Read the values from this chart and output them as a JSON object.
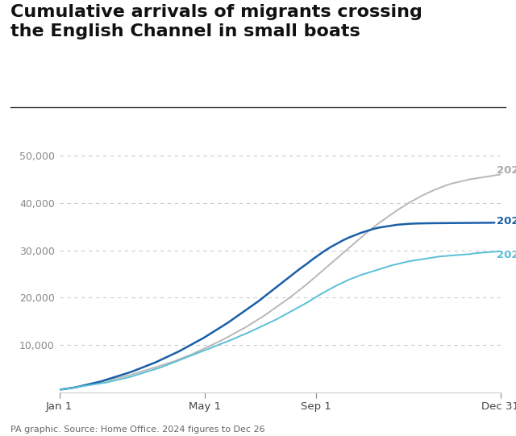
{
  "title": "Cumulative arrivals of migrants crossing\nthe English Channel in small boats",
  "caption": "PA graphic. Source: Home Office. 2024 figures to Dec 26",
  "background_color": "#ffffff",
  "title_fontsize": 16,
  "ylabel_fontsize": 9,
  "xlabel_fontsize": 9.5,
  "caption_fontsize": 8,
  "ylim": [
    0,
    52000
  ],
  "yticks": [
    10000,
    20000,
    30000,
    40000,
    50000
  ],
  "xtick_labels": [
    "Jan 1",
    "May 1",
    "Sep 1",
    "Dec 31"
  ],
  "color_2022": "#b8b8b8",
  "color_2023": "#5bbfd6",
  "color_2024": "#1a5fa8",
  "label_color_2022": "#aaaaaa",
  "label_color_2023": "#5bbfd6",
  "label_color_2024": "#1a5fa8",
  "data_2022": [
    [
      1,
      600
    ],
    [
      5,
      700
    ],
    [
      10,
      900
    ],
    [
      15,
      1100
    ],
    [
      20,
      1400
    ],
    [
      25,
      1600
    ],
    [
      30,
      1900
    ],
    [
      35,
      2200
    ],
    [
      40,
      2500
    ],
    [
      45,
      2800
    ],
    [
      50,
      3100
    ],
    [
      55,
      3400
    ],
    [
      60,
      3700
    ],
    [
      65,
      4100
    ],
    [
      70,
      4500
    ],
    [
      75,
      4900
    ],
    [
      80,
      5300
    ],
    [
      85,
      5700
    ],
    [
      90,
      6100
    ],
    [
      95,
      6500
    ],
    [
      100,
      7000
    ],
    [
      105,
      7500
    ],
    [
      110,
      8000
    ],
    [
      115,
      8600
    ],
    [
      120,
      9200
    ],
    [
      125,
      9800
    ],
    [
      130,
      10400
    ],
    [
      135,
      11000
    ],
    [
      140,
      11700
    ],
    [
      145,
      12400
    ],
    [
      150,
      13100
    ],
    [
      155,
      13800
    ],
    [
      160,
      14600
    ],
    [
      165,
      15400
    ],
    [
      170,
      16200
    ],
    [
      175,
      17100
    ],
    [
      180,
      18000
    ],
    [
      185,
      18900
    ],
    [
      190,
      19800
    ],
    [
      195,
      20800
    ],
    [
      200,
      21800
    ],
    [
      205,
      22800
    ],
    [
      210,
      23900
    ],
    [
      215,
      25000
    ],
    [
      220,
      26100
    ],
    [
      225,
      27200
    ],
    [
      230,
      28300
    ],
    [
      235,
      29400
    ],
    [
      240,
      30500
    ],
    [
      245,
      31600
    ],
    [
      250,
      32700
    ],
    [
      255,
      33800
    ],
    [
      260,
      34800
    ],
    [
      265,
      35800
    ],
    [
      270,
      36700
    ],
    [
      275,
      37600
    ],
    [
      280,
      38500
    ],
    [
      285,
      39300
    ],
    [
      290,
      40100
    ],
    [
      295,
      40800
    ],
    [
      300,
      41500
    ],
    [
      305,
      42100
    ],
    [
      310,
      42700
    ],
    [
      315,
      43200
    ],
    [
      320,
      43700
    ],
    [
      325,
      44100
    ],
    [
      330,
      44400
    ],
    [
      335,
      44700
    ],
    [
      340,
      45000
    ],
    [
      345,
      45200
    ],
    [
      350,
      45400
    ],
    [
      355,
      45600
    ],
    [
      360,
      45800
    ],
    [
      365,
      46000
    ]
  ],
  "data_2023": [
    [
      1,
      600
    ],
    [
      5,
      700
    ],
    [
      10,
      900
    ],
    [
      15,
      1100
    ],
    [
      20,
      1300
    ],
    [
      25,
      1500
    ],
    [
      30,
      1700
    ],
    [
      35,
      1900
    ],
    [
      40,
      2100
    ],
    [
      45,
      2400
    ],
    [
      50,
      2700
    ],
    [
      55,
      3000
    ],
    [
      60,
      3300
    ],
    [
      65,
      3700
    ],
    [
      70,
      4100
    ],
    [
      75,
      4500
    ],
    [
      80,
      4900
    ],
    [
      85,
      5300
    ],
    [
      90,
      5800
    ],
    [
      95,
      6300
    ],
    [
      100,
      6800
    ],
    [
      105,
      7300
    ],
    [
      110,
      7800
    ],
    [
      115,
      8300
    ],
    [
      120,
      8800
    ],
    [
      125,
      9300
    ],
    [
      130,
      9800
    ],
    [
      135,
      10300
    ],
    [
      140,
      10800
    ],
    [
      145,
      11300
    ],
    [
      150,
      11900
    ],
    [
      155,
      12400
    ],
    [
      160,
      13000
    ],
    [
      165,
      13600
    ],
    [
      170,
      14200
    ],
    [
      175,
      14800
    ],
    [
      180,
      15400
    ],
    [
      185,
      16100
    ],
    [
      190,
      16800
    ],
    [
      195,
      17500
    ],
    [
      200,
      18200
    ],
    [
      205,
      18900
    ],
    [
      210,
      19700
    ],
    [
      215,
      20500
    ],
    [
      220,
      21200
    ],
    [
      225,
      21900
    ],
    [
      230,
      22600
    ],
    [
      235,
      23200
    ],
    [
      240,
      23800
    ],
    [
      245,
      24300
    ],
    [
      250,
      24800
    ],
    [
      255,
      25200
    ],
    [
      260,
      25600
    ],
    [
      265,
      26000
    ],
    [
      270,
      26400
    ],
    [
      275,
      26800
    ],
    [
      280,
      27100
    ],
    [
      285,
      27400
    ],
    [
      290,
      27700
    ],
    [
      295,
      27900
    ],
    [
      300,
      28100
    ],
    [
      305,
      28300
    ],
    [
      310,
      28500
    ],
    [
      315,
      28700
    ],
    [
      320,
      28800
    ],
    [
      325,
      28900
    ],
    [
      330,
      29000
    ],
    [
      335,
      29100
    ],
    [
      340,
      29200
    ],
    [
      345,
      29400
    ],
    [
      350,
      29500
    ],
    [
      355,
      29600
    ],
    [
      360,
      29700
    ],
    [
      365,
      29800
    ]
  ],
  "data_2024": [
    [
      1,
      600
    ],
    [
      5,
      700
    ],
    [
      10,
      900
    ],
    [
      15,
      1100
    ],
    [
      20,
      1400
    ],
    [
      25,
      1700
    ],
    [
      30,
      2000
    ],
    [
      35,
      2300
    ],
    [
      40,
      2700
    ],
    [
      45,
      3100
    ],
    [
      50,
      3500
    ],
    [
      55,
      3900
    ],
    [
      60,
      4300
    ],
    [
      65,
      4800
    ],
    [
      70,
      5300
    ],
    [
      75,
      5800
    ],
    [
      80,
      6300
    ],
    [
      85,
      6900
    ],
    [
      90,
      7500
    ],
    [
      95,
      8100
    ],
    [
      100,
      8700
    ],
    [
      105,
      9400
    ],
    [
      110,
      10100
    ],
    [
      115,
      10800
    ],
    [
      120,
      11500
    ],
    [
      125,
      12300
    ],
    [
      130,
      13100
    ],
    [
      135,
      13900
    ],
    [
      140,
      14700
    ],
    [
      145,
      15600
    ],
    [
      150,
      16500
    ],
    [
      155,
      17400
    ],
    [
      160,
      18300
    ],
    [
      165,
      19200
    ],
    [
      170,
      20200
    ],
    [
      175,
      21200
    ],
    [
      180,
      22200
    ],
    [
      185,
      23200
    ],
    [
      190,
      24200
    ],
    [
      195,
      25200
    ],
    [
      200,
      26200
    ],
    [
      205,
      27100
    ],
    [
      210,
      28100
    ],
    [
      215,
      29000
    ],
    [
      220,
      29900
    ],
    [
      225,
      30700
    ],
    [
      230,
      31400
    ],
    [
      235,
      32100
    ],
    [
      240,
      32700
    ],
    [
      245,
      33200
    ],
    [
      250,
      33700
    ],
    [
      255,
      34100
    ],
    [
      260,
      34500
    ],
    [
      265,
      34800
    ],
    [
      270,
      35000
    ],
    [
      275,
      35200
    ],
    [
      280,
      35400
    ],
    [
      285,
      35500
    ],
    [
      290,
      35600
    ],
    [
      295,
      35650
    ],
    [
      300,
      35680
    ],
    [
      305,
      35700
    ],
    [
      310,
      35720
    ],
    [
      315,
      35730
    ],
    [
      320,
      35740
    ],
    [
      325,
      35750
    ],
    [
      330,
      35760
    ],
    [
      335,
      35770
    ],
    [
      340,
      35780
    ],
    [
      345,
      35790
    ],
    [
      350,
      35800
    ],
    [
      355,
      35810
    ],
    [
      360,
      35820
    ]
  ]
}
